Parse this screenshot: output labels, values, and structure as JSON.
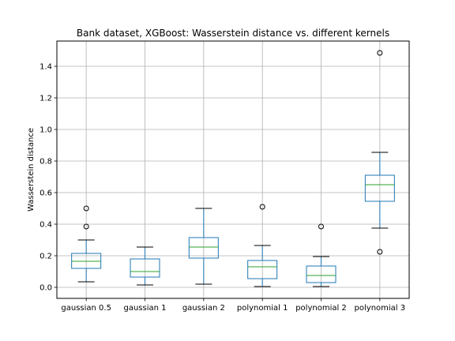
{
  "chart_data": {
    "type": "box",
    "title": "Bank dataset, XGBoost: Wasserstein distance vs. different kernels",
    "xlabel": "",
    "ylabel": "Wasserstein distance",
    "ylim": [
      -0.07,
      1.56
    ],
    "yticks": [
      0.0,
      0.2,
      0.4,
      0.6,
      0.8,
      1.0,
      1.2,
      1.4
    ],
    "ytick_labels": [
      "0.0",
      "0.2",
      "0.4",
      "0.6",
      "0.8",
      "1.0",
      "1.2",
      "1.4"
    ],
    "grid": true,
    "legend": "none",
    "colors": {
      "box": "#1f77b4",
      "median": "#2ca02c",
      "whisker": "#000000",
      "grid": "#b0b0b0"
    },
    "series": [
      {
        "category": "gaussian 0.5",
        "whisker_low": 0.035,
        "q1": 0.12,
        "median": 0.165,
        "q3": 0.215,
        "whisker_high": 0.3,
        "outliers": [
          0.385,
          0.5
        ]
      },
      {
        "category": "gaussian 1",
        "whisker_low": 0.015,
        "q1": 0.065,
        "median": 0.1,
        "q3": 0.18,
        "whisker_high": 0.255,
        "outliers": []
      },
      {
        "category": "gaussian 2",
        "whisker_low": 0.02,
        "q1": 0.185,
        "median": 0.255,
        "q3": 0.315,
        "whisker_high": 0.5,
        "outliers": []
      },
      {
        "category": "polynomial 1",
        "whisker_low": 0.005,
        "q1": 0.055,
        "median": 0.13,
        "q3": 0.17,
        "whisker_high": 0.265,
        "outliers": [
          0.51
        ]
      },
      {
        "category": "polynomial 2",
        "whisker_low": 0.005,
        "q1": 0.03,
        "median": 0.075,
        "q3": 0.135,
        "whisker_high": 0.195,
        "outliers": [
          0.385
        ]
      },
      {
        "category": "polynomial 3",
        "whisker_low": 0.375,
        "q1": 0.545,
        "median": 0.65,
        "q3": 0.71,
        "whisker_high": 0.855,
        "outliers": [
          0.225,
          1.485
        ]
      }
    ]
  }
}
